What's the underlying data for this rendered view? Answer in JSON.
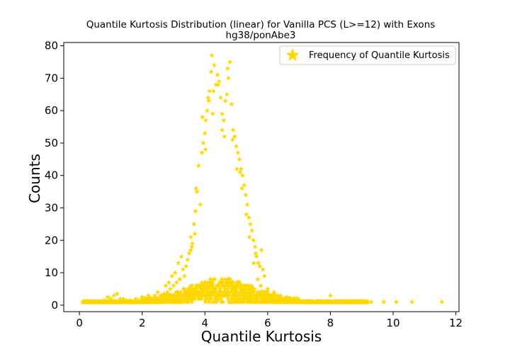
{
  "chart_data": {
    "type": "scatter",
    "title": "Quantile Kurtosis Distribution (linear) for Vanilla PCS (L>=12) with Exons",
    "subtitle": "hg38/ponAbe3",
    "xlabel": "Quantile Kurtosis",
    "ylabel": "Counts",
    "xlim": [
      -0.5,
      12.1
    ],
    "ylim": [
      -2,
      81
    ],
    "xticks": [
      0,
      2,
      4,
      6,
      8,
      10,
      12
    ],
    "yticks": [
      0,
      10,
      20,
      30,
      40,
      50,
      60,
      70,
      80
    ],
    "grid": false,
    "legend_position": "top-right",
    "marker": "star",
    "color": "#FFD700",
    "series": [
      {
        "name": "Frequency of Quantile Kurtosis",
        "points": [
          [
            3.45,
            14
          ],
          [
            3.5,
            16
          ],
          [
            3.55,
            17
          ],
          [
            3.6,
            19
          ],
          [
            3.65,
            25
          ],
          [
            3.7,
            29
          ],
          [
            3.75,
            35
          ],
          [
            3.8,
            43
          ],
          [
            3.9,
            47
          ],
          [
            3.95,
            50
          ],
          [
            4.0,
            53
          ],
          [
            4.03,
            57
          ],
          [
            4.07,
            60
          ],
          [
            4.1,
            64
          ],
          [
            4.15,
            66
          ],
          [
            4.2,
            72
          ],
          [
            4.22,
            77
          ],
          [
            4.3,
            74
          ],
          [
            4.35,
            68
          ],
          [
            4.4,
            71
          ],
          [
            4.45,
            69
          ],
          [
            4.5,
            64
          ],
          [
            4.55,
            59
          ],
          [
            4.6,
            57
          ],
          [
            4.65,
            63
          ],
          [
            4.7,
            65
          ],
          [
            4.75,
            70
          ],
          [
            4.8,
            75
          ],
          [
            4.85,
            62
          ],
          [
            4.9,
            54
          ],
          [
            4.95,
            52
          ],
          [
            5.0,
            49
          ],
          [
            5.05,
            47
          ],
          [
            5.1,
            45
          ],
          [
            5.15,
            42
          ],
          [
            5.2,
            40
          ],
          [
            5.25,
            37
          ],
          [
            5.3,
            34
          ],
          [
            5.35,
            31
          ],
          [
            5.4,
            27
          ],
          [
            5.45,
            25
          ],
          [
            5.5,
            23
          ],
          [
            5.55,
            20
          ],
          [
            5.6,
            18
          ],
          [
            5.65,
            15
          ],
          [
            5.7,
            13
          ],
          [
            5.75,
            12
          ],
          [
            5.8,
            17
          ],
          [
            5.85,
            11
          ],
          [
            5.9,
            9
          ],
          [
            3.4,
            12
          ],
          [
            3.35,
            9
          ],
          [
            3.3,
            11
          ],
          [
            3.2,
            8
          ],
          [
            3.1,
            7
          ],
          [
            3.0,
            6
          ],
          [
            2.9,
            5
          ],
          [
            2.8,
            4
          ],
          [
            2.7,
            3.5
          ],
          [
            2.6,
            3
          ],
          [
            3.92,
            58
          ],
          [
            4.12,
            63
          ],
          [
            4.27,
            66
          ],
          [
            4.55,
            54
          ],
          [
            4.72,
            73
          ],
          [
            5.02,
            42
          ],
          [
            5.18,
            36
          ],
          [
            5.32,
            28
          ],
          [
            3.85,
            31
          ],
          [
            3.68,
            22
          ],
          [
            3.58,
            18
          ],
          [
            4.42,
            68
          ],
          [
            4.02,
            48
          ],
          [
            4.62,
            52
          ],
          [
            5.12,
            41
          ],
          [
            5.42,
            21
          ],
          [
            5.62,
            16
          ],
          [
            3.72,
            36
          ],
          [
            4.25,
            59
          ],
          [
            4.88,
            51
          ],
          [
            2.75,
            6
          ],
          [
            2.85,
            7
          ],
          [
            2.95,
            9
          ],
          [
            3.05,
            10
          ],
          [
            3.15,
            13
          ],
          [
            3.25,
            15
          ],
          [
            3.55,
            21
          ],
          [
            5.55,
            13
          ],
          [
            5.68,
            8
          ],
          [
            5.78,
            6
          ],
          [
            6.0,
            5
          ],
          [
            6.2,
            4
          ],
          [
            6.4,
            3
          ],
          [
            6.6,
            2.5
          ],
          [
            6.8,
            2
          ],
          [
            7.0,
            1.5
          ],
          [
            7.3,
            1.2
          ],
          [
            7.6,
            1
          ],
          [
            8.0,
            3
          ],
          [
            8.5,
            1
          ],
          [
            9.0,
            1
          ],
          [
            9.3,
            1
          ],
          [
            9.7,
            1
          ],
          [
            10.1,
            1
          ],
          [
            10.6,
            1
          ],
          [
            11.55,
            1
          ],
          [
            0.2,
            1
          ],
          [
            0.4,
            1
          ],
          [
            0.6,
            1
          ],
          [
            0.8,
            1.5
          ],
          [
            1.0,
            2
          ],
          [
            1.2,
            3.5
          ],
          [
            1.4,
            2
          ],
          [
            1.6,
            1.5
          ],
          [
            1.8,
            2
          ],
          [
            2.0,
            2.5
          ],
          [
            2.2,
            3
          ],
          [
            2.4,
            3
          ],
          [
            2.5,
            4
          ],
          [
            1.1,
            3
          ],
          [
            0.9,
            2.5
          ],
          [
            1.3,
            2
          ],
          [
            1.5,
            1.5
          ],
          [
            1.7,
            1
          ],
          [
            1.9,
            1.5
          ],
          [
            2.1,
            2
          ]
        ],
        "dense_band": {
          "x_range": [
            0.1,
            9.2
          ],
          "peak_x": 4.5,
          "peak_count": 8,
          "description_counts": "low counts (0 to about 9)"
        }
      }
    ]
  }
}
